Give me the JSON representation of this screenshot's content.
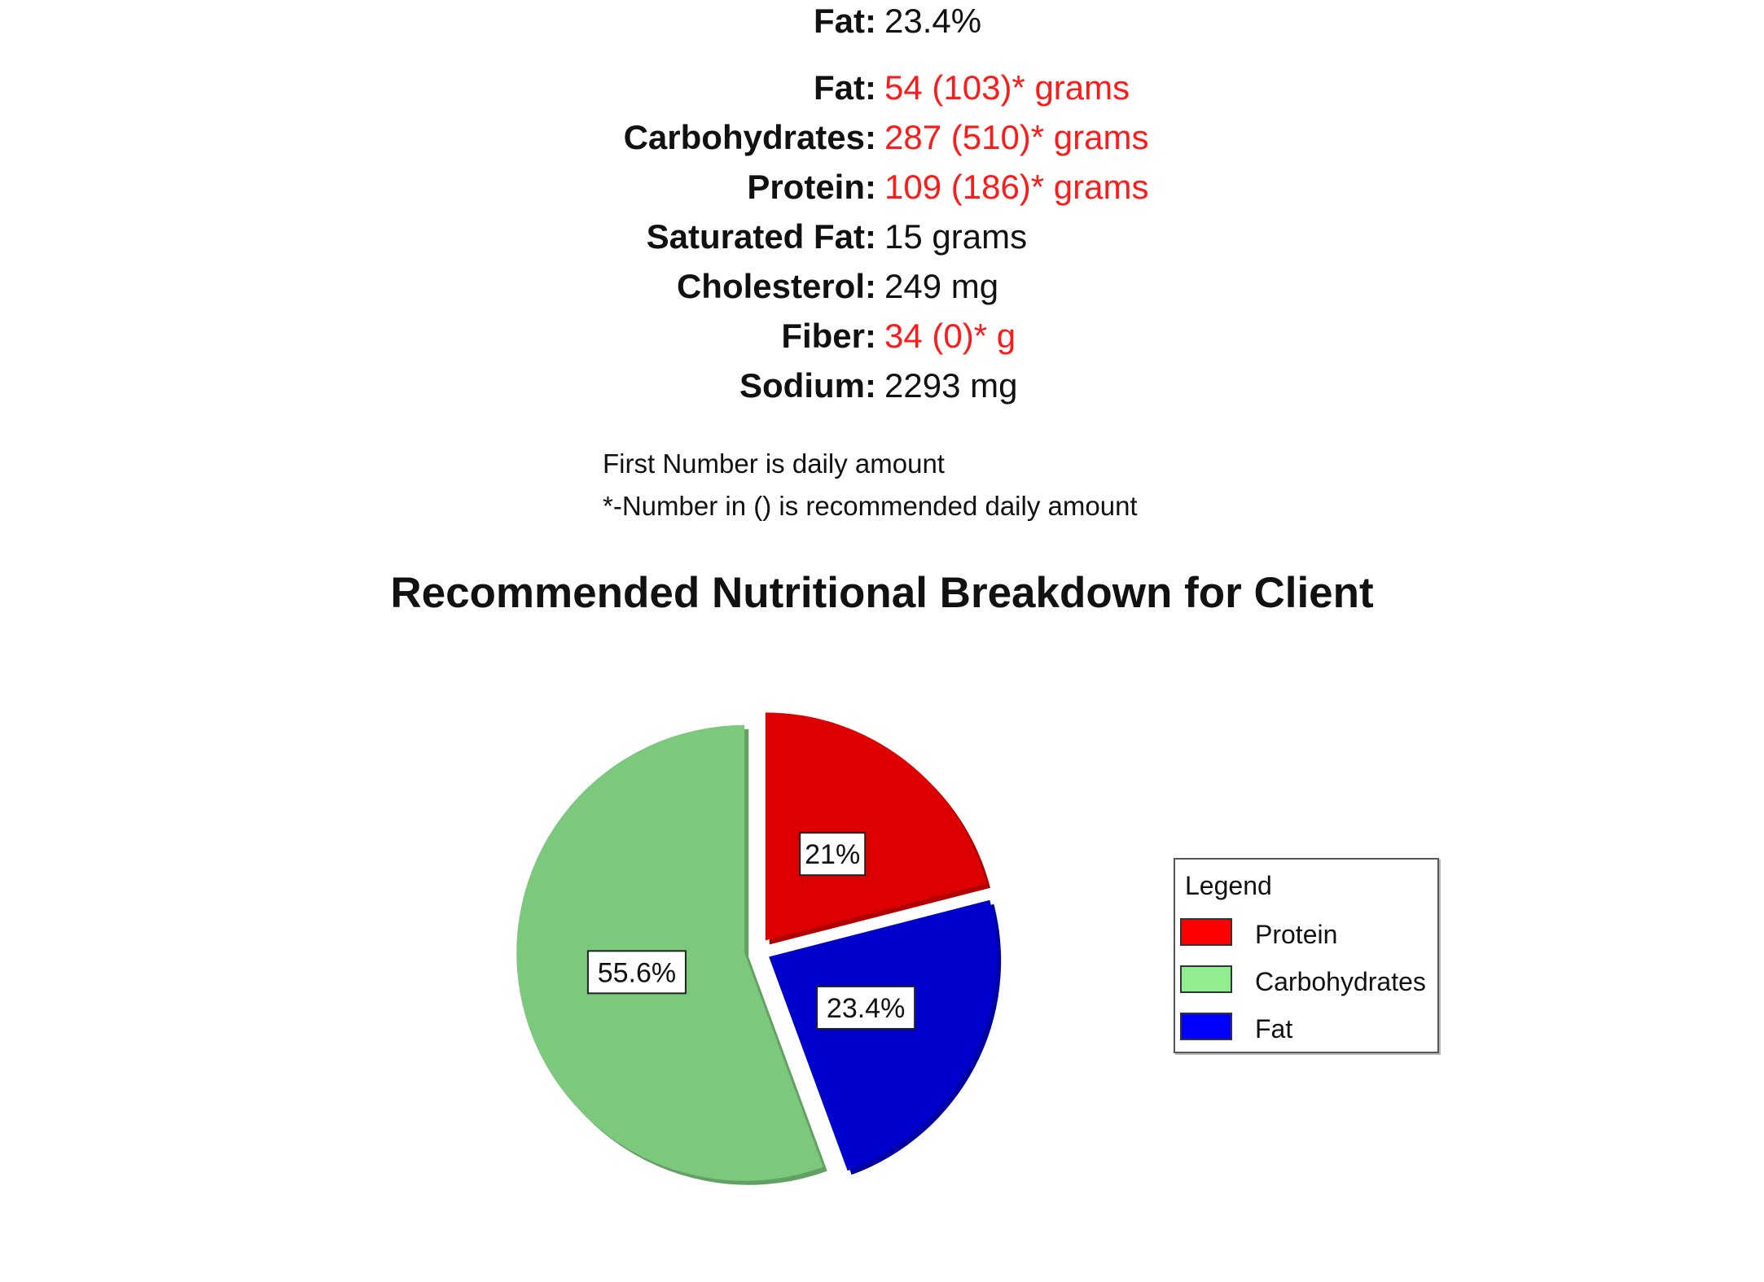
{
  "summary": {
    "fat_label": "Fat:",
    "fat_value": "23.4%"
  },
  "nutrients": [
    {
      "label": "Fat:",
      "value": "54 (103)* grams",
      "highlight": true
    },
    {
      "label": "Carbohydrates:",
      "value": "287 (510)* grams",
      "highlight": true
    },
    {
      "label": "Protein:",
      "value": "109 (186)* grams",
      "highlight": true
    },
    {
      "label": "Saturated Fat:",
      "value": "15 grams",
      "highlight": false
    },
    {
      "label": "Cholesterol:",
      "value": "249 mg",
      "highlight": false
    },
    {
      "label": "Fiber:",
      "value": "34 (0)* g",
      "highlight": true
    },
    {
      "label": "Sodium:",
      "value": "2293 mg",
      "highlight": false
    }
  ],
  "notes": {
    "line1": "First Number is daily amount",
    "line2": "*-Number in () is recommended daily amount"
  },
  "colors": {
    "highlight_text": "#ff1a1a",
    "protein": "#dd0000",
    "carbohydrates": "#7cc87c",
    "fat": "#0000cc"
  },
  "chart_data": {
    "type": "pie",
    "title": "Recommended Nutritional Breakdown for Client",
    "legend_title": "Legend",
    "legend_position": "right",
    "exploded": true,
    "slices": [
      {
        "name": "Protein",
        "value": 21,
        "label": "21%",
        "color": "#dd0000",
        "legend_color": "#ff0000"
      },
      {
        "name": "Fat",
        "value": 23.4,
        "label": "23.4%",
        "color": "#0000cc",
        "legend_color": "#0000ff"
      },
      {
        "name": "Carbohydrates",
        "value": 55.6,
        "label": "55.6%",
        "color": "#7cc87c",
        "legend_color": "#90ee90"
      }
    ],
    "legend_order": [
      "Protein",
      "Carbohydrates",
      "Fat"
    ]
  }
}
